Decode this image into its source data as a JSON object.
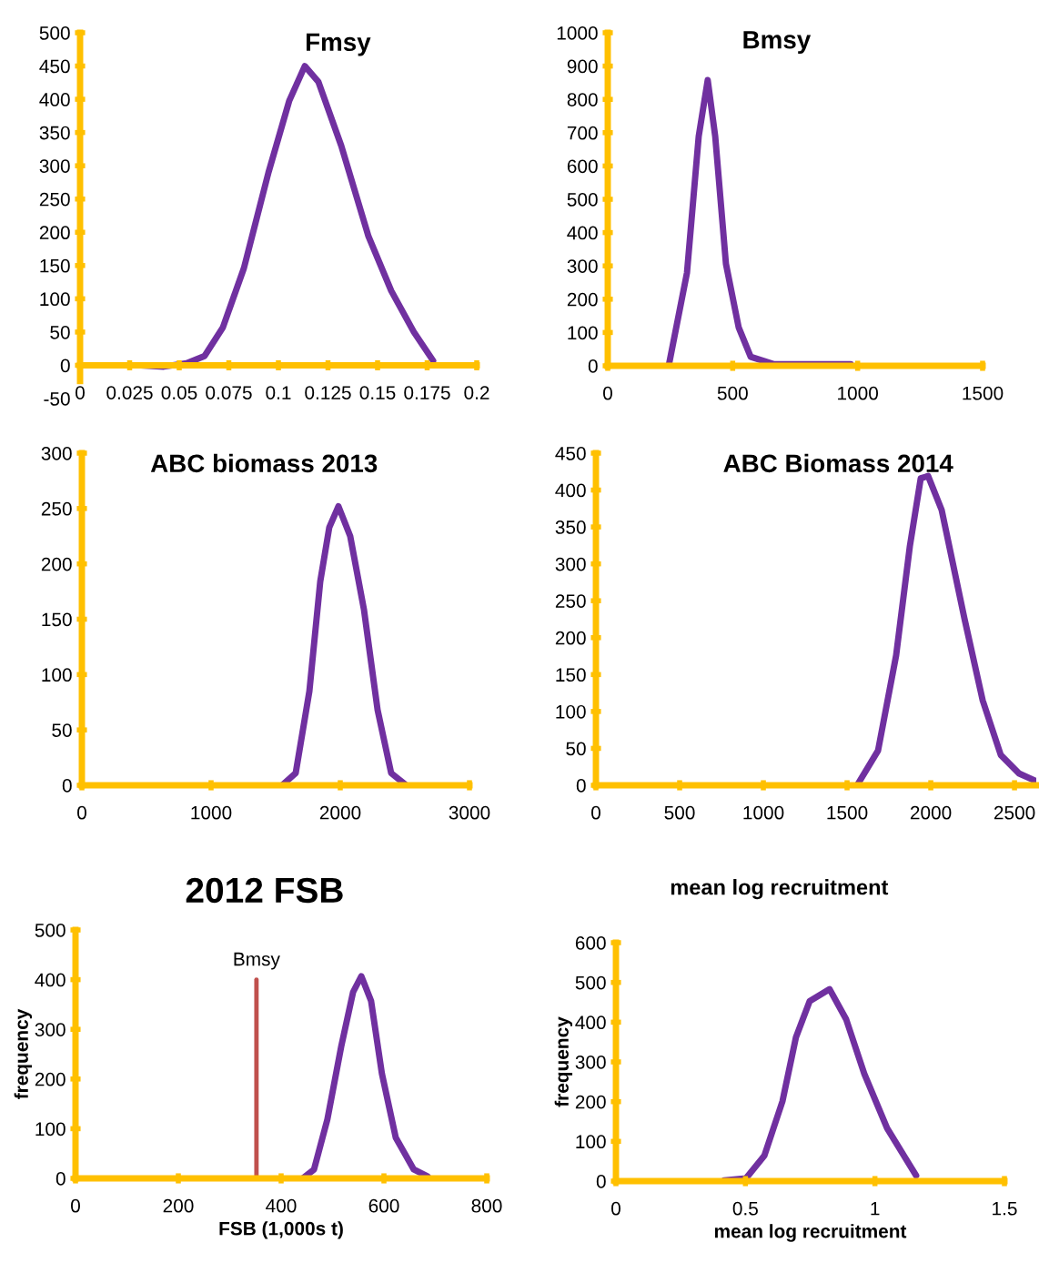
{
  "chart_data": [
    {
      "type": "line",
      "title": "Fmsy",
      "x": [
        0.0307,
        0.0422,
        0.0537,
        0.0628,
        0.072,
        0.0826,
        0.095,
        0.1055,
        0.1133,
        0.1202,
        0.1317,
        0.1454,
        0.1569,
        0.1683,
        0.178
      ],
      "series": [
        {
          "color": "#7030a0",
          "values": [
            0,
            -2,
            3,
            14,
            57,
            146,
            290,
            398,
            450,
            426,
            330,
            194,
            112,
            50,
            7
          ]
        }
      ],
      "xlim": [
        0,
        0.2
      ],
      "xticks": [
        0,
        0.025,
        0.05,
        0.075,
        0.1,
        0.125,
        0.15,
        0.175,
        0.2
      ],
      "ylim": [
        -50,
        500
      ],
      "yticks": [
        -50,
        0,
        50,
        100,
        150,
        200,
        250,
        300,
        350,
        400,
        450,
        500
      ],
      "grid": false,
      "legend": false,
      "marker": "none",
      "line_style": "solid"
    },
    {
      "type": "line",
      "title": "Bmsy",
      "x": [
        244,
        317,
        364,
        400,
        430,
        473,
        524,
        572,
        663,
        972
      ],
      "series": [
        {
          "color": "#7030a0",
          "values": [
            0,
            279,
            689,
            858,
            689,
            306,
            115,
            27,
            5,
            5
          ]
        }
      ],
      "xlim": [
        0,
        1500
      ],
      "xticks": [
        0,
        500,
        1000,
        1500
      ],
      "ylim": [
        0,
        1000
      ],
      "yticks": [
        0,
        100,
        200,
        300,
        400,
        500,
        600,
        700,
        800,
        900,
        1000
      ],
      "grid": false,
      "legend": false,
      "marker": "none",
      "line_style": "solid"
    },
    {
      "type": "line",
      "title": "ABC biomass 2013",
      "x": [
        1549,
        1655,
        1761,
        1845,
        1915,
        1986,
        2077,
        2183,
        2289,
        2394,
        2500
      ],
      "series": [
        {
          "color": "#7030a0",
          "values": [
            0,
            11,
            85,
            184,
            233,
            252,
            225,
            159,
            68,
            11,
            1
          ]
        }
      ],
      "xlim": [
        0,
        3000
      ],
      "xticks": [
        0,
        1000,
        2000,
        3000
      ],
      "ylim": [
        0,
        300
      ],
      "yticks": [
        0,
        50,
        100,
        150,
        200,
        250,
        300
      ],
      "grid": false,
      "legend": false,
      "marker": "none",
      "line_style": "solid"
    },
    {
      "type": "line",
      "title": "ABC Biomass 2014",
      "x": [
        1560,
        1685,
        1793,
        1875,
        1940,
        1984,
        2065,
        2201,
        2310,
        2418,
        2527,
        2625
      ],
      "series": [
        {
          "color": "#7030a0",
          "values": [
            0,
            47,
            176,
            324,
            416,
            419,
            373,
            226,
            115,
            41,
            16,
            6
          ]
        }
      ],
      "xlim": [
        0,
        2630
      ],
      "xticks": [
        0,
        500,
        1000,
        1500,
        2000,
        2500
      ],
      "ylim": [
        0,
        450
      ],
      "yticks": [
        0,
        50,
        100,
        150,
        200,
        250,
        300,
        350,
        400,
        450
      ],
      "grid": false,
      "legend": false,
      "marker": "none",
      "line_style": "solid"
    },
    {
      "type": "line",
      "title": "2012 FSB",
      "xlabel": "FSB (1,000s t)",
      "ylabel": "frequency",
      "series": [
        {
          "color": "#7030a0",
          "x": [
            442,
            464,
            490,
            517,
            540,
            556,
            575,
            596,
            623,
            658,
            685
          ],
          "values": [
            0,
            18,
            119,
            266,
            375,
            407,
            357,
            211,
            82,
            18,
            4
          ]
        },
        {
          "name": "Bmsy",
          "color": "#c0504d",
          "x": [
            352,
            352
          ],
          "values": [
            0,
            400
          ]
        }
      ],
      "xlim": [
        0,
        800
      ],
      "xticks": [
        0,
        200,
        400,
        600,
        800
      ],
      "ylim": [
        0,
        500
      ],
      "yticks": [
        0,
        100,
        200,
        300,
        400,
        500
      ],
      "grid": false,
      "legend": false,
      "marker": "none",
      "line_style": "solid"
    },
    {
      "type": "line",
      "title": "mean log recruitment",
      "xlabel": "mean log recruitment",
      "ylabel": "frequency",
      "x": [
        0.418,
        0.502,
        0.573,
        0.643,
        0.695,
        0.748,
        0.825,
        0.889,
        0.959,
        1.047,
        1.159
      ],
      "series": [
        {
          "color": "#7030a0",
          "values": [
            2,
            7,
            64,
            201,
            362,
            453,
            483,
            407,
            270,
            133,
            14
          ]
        }
      ],
      "xlim": [
        0,
        1.5
      ],
      "xticks": [
        0,
        0.5,
        1,
        1.5
      ],
      "ylim": [
        0,
        600
      ],
      "yticks": [
        0,
        100,
        200,
        300,
        400,
        500,
        600
      ],
      "grid": false,
      "legend": false,
      "marker": "none",
      "line_style": "solid"
    }
  ]
}
